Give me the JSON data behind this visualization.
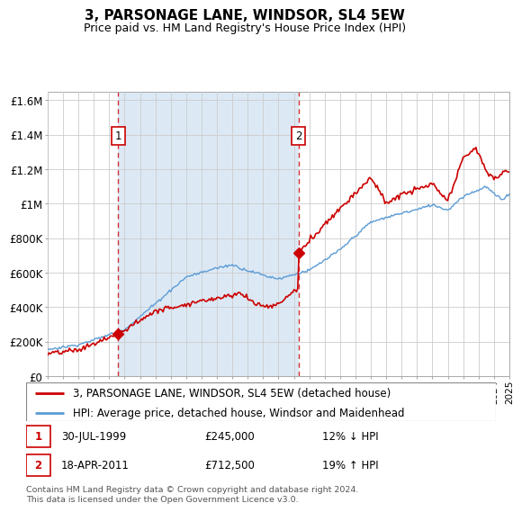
{
  "title": "3, PARSONAGE LANE, WINDSOR, SL4 5EW",
  "subtitle": "Price paid vs. HM Land Registry's House Price Index (HPI)",
  "ylim": [
    0,
    1650000
  ],
  "yticks": [
    0,
    200000,
    400000,
    600000,
    800000,
    1000000,
    1200000,
    1400000,
    1600000
  ],
  "ytick_labels": [
    "£0",
    "£200K",
    "£400K",
    "£600K",
    "£800K",
    "£1M",
    "£1.2M",
    "£1.4M",
    "£1.6M"
  ],
  "xlim_start": 1995,
  "xlim_end": 2025,
  "sale1_year": 1999.58,
  "sale1_price": 245000,
  "sale2_year": 2011.3,
  "sale2_price": 712500,
  "red_color": "#cc0000",
  "blue_color": "#5b9bd5",
  "shade_color": "#dce9f5",
  "grid_color": "#cccccc",
  "legend_line1": "3, PARSONAGE LANE, WINDSOR, SL4 5EW (detached house)",
  "legend_line2": "HPI: Average price, detached house, Windsor and Maidenhead",
  "annotation1_label": "1",
  "annotation1_date": "30-JUL-1999",
  "annotation1_price": "£245,000",
  "annotation1_hpi": "12% ↓ HPI",
  "annotation2_label": "2",
  "annotation2_date": "18-APR-2011",
  "annotation2_price": "£712,500",
  "annotation2_hpi": "19% ↑ HPI",
  "footer": "Contains HM Land Registry data © Crown copyright and database right 2024.\nThis data is licensed under the Open Government Licence v3.0.",
  "background_color": "#ffffff"
}
